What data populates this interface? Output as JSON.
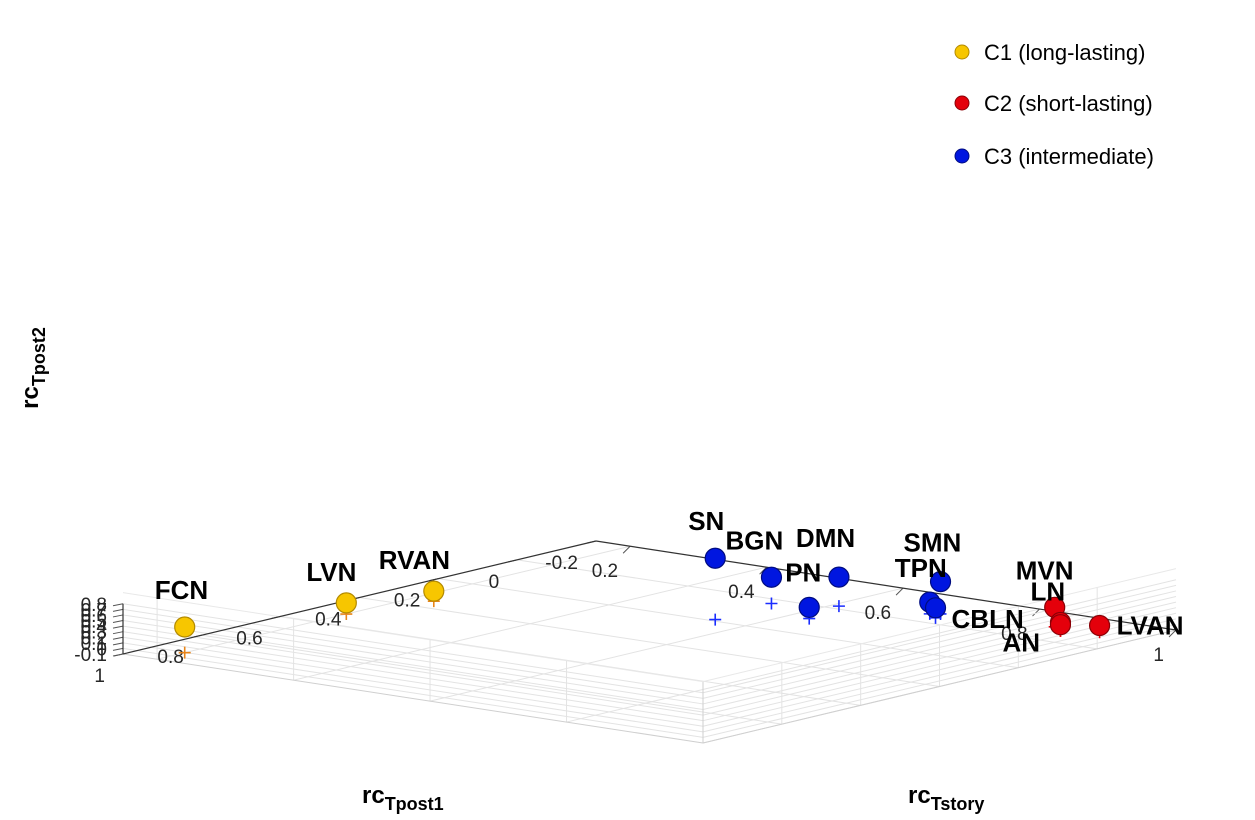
{
  "chart_data": {
    "type": "scatter3d",
    "axes": {
      "x": {
        "label_main": "rc",
        "label_sub": "Tpost1",
        "ticks": [
          {
            "value": 1,
            "label": "1"
          },
          {
            "value": 0.8,
            "label": "0.8"
          },
          {
            "value": 0.6,
            "label": "0.6"
          },
          {
            "value": 0.4,
            "label": "0.4"
          },
          {
            "value": 0.2,
            "label": "0.2"
          },
          {
            "value": 0,
            "label": "0"
          },
          {
            "value": -0.2,
            "label": "-0.2"
          }
        ],
        "range": [
          -0.2,
          1.0
        ]
      },
      "y": {
        "label_main": "rc",
        "label_sub": "Tstory",
        "ticks": [
          {
            "value": 0.2,
            "label": "0.2"
          },
          {
            "value": 0.4,
            "label": "0.4"
          },
          {
            "value": 0.6,
            "label": "0.6"
          },
          {
            "value": 0.8,
            "label": "0.8"
          },
          {
            "value": 1,
            "label": "1"
          }
        ],
        "range": [
          0.15,
          1.0
        ]
      },
      "z": {
        "label_main": "rc",
        "label_sub": "Tpost2",
        "ticks": [
          {
            "value": -0.1,
            "label": "-0.1"
          },
          {
            "value": 0,
            "label": "0"
          },
          {
            "value": 0.1,
            "label": "0.1"
          },
          {
            "value": 0.2,
            "label": "0.2"
          },
          {
            "value": 0.3,
            "label": "0.3"
          },
          {
            "value": 0.4,
            "label": "0.4"
          },
          {
            "value": 0.5,
            "label": "0.5"
          },
          {
            "value": 0.6,
            "label": "0.6"
          },
          {
            "value": 0.7,
            "label": "0.7"
          },
          {
            "value": 0.8,
            "label": "0.8"
          }
        ],
        "range": [
          -0.1,
          0.8
        ]
      }
    },
    "grid": true,
    "legend": {
      "position": "top-right",
      "entries": [
        {
          "cluster": "C1",
          "label": "C1 (long-lasting)",
          "color": "#F7C600"
        },
        {
          "cluster": "C2",
          "label": "C2 (short-lasting)",
          "color": "#E4000B"
        },
        {
          "cluster": "C3",
          "label": "C3 (intermediate)",
          "color": "#0016E0"
        }
      ]
    },
    "cluster_colors": {
      "C1": {
        "fill": "#F7C600",
        "stroke": "#B38A00",
        "projection": "#E8851A"
      },
      "C2": {
        "fill": "#E4000B",
        "stroke": "#8A0006",
        "projection": "#E4000B"
      },
      "C3": {
        "fill": "#0016E0",
        "stroke": "#000C80",
        "projection": "#1A2DFF"
      }
    },
    "points": [
      {
        "label": "FCN",
        "cluster": "C1",
        "x": 0.93,
        "y": 0.2,
        "z": 0.36
      },
      {
        "label": "LVN",
        "cluster": "C1",
        "x": 0.52,
        "y": 0.2,
        "z": 0.1
      },
      {
        "label": "RVAN",
        "cluster": "C1",
        "x": 0.35,
        "y": 0.23,
        "z": 0.08
      },
      {
        "label": "SN",
        "cluster": "C3",
        "x": 0.19,
        "y": 0.55,
        "z": 1.0
      },
      {
        "label": "BGN",
        "cluster": "C3",
        "x": 0.03,
        "y": 0.54,
        "z": 0.37
      },
      {
        "label": "DMN",
        "cluster": "C3",
        "x": -0.02,
        "y": 0.61,
        "z": 0.42
      },
      {
        "label": "SMN",
        "cluster": "C3",
        "x": -0.07,
        "y": 0.73,
        "z": 0.48
      },
      {
        "label": "PN",
        "cluster": "C3",
        "x": 0.09,
        "y": 0.63,
        "z": 0.1
      },
      {
        "label": "TPN",
        "cluster": "C3",
        "x": -0.06,
        "y": 0.72,
        "z": 0.11
      },
      {
        "label": "CBLN",
        "cluster": "C3",
        "x": -0.04,
        "y": 0.74,
        "z": 0.08
      },
      {
        "label": "MVN",
        "cluster": "C2",
        "x": -0.1,
        "y": 0.88,
        "z": 0.25
      },
      {
        "label": "LN",
        "cluster": "C2",
        "x": -0.08,
        "y": 0.9,
        "z": 0.05
      },
      {
        "label": "AN",
        "cluster": "C2",
        "x": -0.08,
        "y": 0.9,
        "z": 0.01
      },
      {
        "label": "LVAN",
        "cluster": "C2",
        "x": -0.11,
        "y": 0.94,
        "z": 0.02
      }
    ]
  }
}
